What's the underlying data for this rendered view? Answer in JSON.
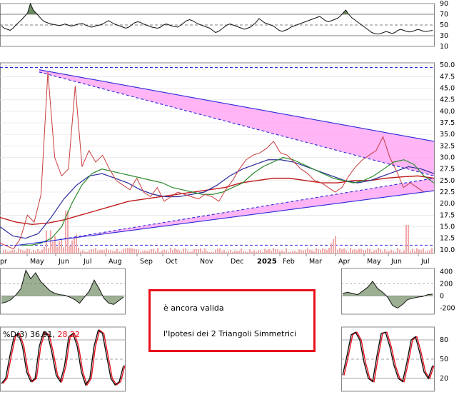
{
  "colors": {
    "rsi_line": "#111111",
    "rsi_fill": "#4a6e3a",
    "price_line": "#c83c3c",
    "sma_green": "#2e8b2e",
    "sma_blue": "#2a2a9a",
    "sma_red": "#c01c1c",
    "triangle_fill": "#ff9cf3",
    "trend_line": "#2a2ad8",
    "volume": "#f0a8a8",
    "macd_fill_pos": "#4a6e3a",
    "macd_fill_neg": "#8a4040",
    "stoch_k": "#111111",
    "stoch_d": "#e8101c",
    "note_border": "#e8101c"
  },
  "note": {
    "line1": "è ancora valida",
    "line2": "l'Ipotesi dei 2 Triangoli Simmetrici"
  },
  "stoch_label": {
    "prefix": "%D(3)",
    "value1": "36.91,",
    "value2": "28.22"
  },
  "chart_data": [
    {
      "type": "line",
      "panel": "rsi",
      "y_ticks": [
        "90",
        "70",
        "50",
        "30",
        "10"
      ],
      "ylim": [
        10,
        90
      ],
      "reference_levels": [
        30,
        50,
        70
      ],
      "grid": true
    },
    {
      "type": "line",
      "panel": "price",
      "y_ticks": [
        "50.0",
        "47.5",
        "45.0",
        "42.5",
        "40.0",
        "37.5",
        "35.0",
        "32.5",
        "30.0",
        "27.5",
        "25.0",
        "22.5",
        "20.0",
        "17.5",
        "15.0",
        "12.5",
        "10.0"
      ],
      "ylim": [
        9.2,
        50.5
      ],
      "x_labels": [
        "pr",
        "May",
        "Jun",
        "Jul",
        "Aug",
        "Sep",
        "Oct",
        "Nov",
        "Dec",
        "2025",
        "Feb",
        "Mar",
        "Apr",
        "May",
        "Jun",
        "Jul"
      ],
      "horizontal_levels": [
        49.5,
        11.0
      ],
      "series": [
        {
          "role": "price",
          "values": [
            11.5,
            10.8,
            10.2,
            12.5,
            17.5,
            16.0,
            22.0,
            48.5,
            30.0,
            26.0,
            27.5,
            45.5,
            28.0,
            31.5,
            29.0,
            30.5,
            27.5,
            25.0,
            24.0,
            23.0,
            25.5,
            22.5,
            21.5,
            23.5,
            20.5,
            21.5,
            22.5,
            22.0,
            21.5,
            21.0,
            22.0,
            21.5,
            20.5,
            23.0,
            25.0,
            27.5,
            29.5,
            30.5,
            31.0,
            32.0,
            33.5,
            31.0,
            30.5,
            29.0,
            27.5,
            26.5,
            25.0,
            24.5,
            23.5,
            22.5,
            23.5,
            26.0,
            28.0,
            29.5,
            30.5,
            31.5,
            34.5,
            30.0,
            27.0,
            23.5,
            24.5,
            23.5,
            22.5
          ]
        },
        {
          "role": "sma_short",
          "values": [
            11.0,
            11.0,
            11.5,
            12.5,
            15.0,
            20.0,
            24.0,
            26.5,
            27.5,
            27.0,
            26.5,
            26.0,
            25.5,
            25.0,
            24.5,
            23.5,
            23.0,
            22.5,
            22.0,
            22.0,
            22.5,
            23.5,
            24.5,
            26.5,
            28.0,
            29.0,
            30.0,
            29.5,
            28.5,
            27.5,
            26.5,
            25.5,
            25.0,
            24.5,
            25.0,
            26.0,
            27.5,
            29.0,
            29.5,
            28.5,
            26.0,
            24.5
          ]
        },
        {
          "role": "sma_mid",
          "values": [
            15.0,
            13.0,
            12.5,
            13.5,
            17.0,
            21.0,
            24.0,
            26.0,
            26.5,
            25.5,
            24.5,
            23.0,
            22.0,
            21.5,
            21.5,
            22.0,
            22.5,
            24.0,
            26.0,
            27.5,
            28.5,
            29.5,
            29.5,
            29.0,
            28.0,
            27.0,
            26.0,
            25.0,
            24.5,
            25.0,
            26.0,
            27.0,
            28.0,
            27.5,
            26.5
          ]
        },
        {
          "role": "sma_long",
          "values": [
            17.0,
            16.0,
            15.5,
            15.8,
            16.5,
            17.5,
            18.5,
            19.5,
            20.5,
            21.0,
            21.5,
            22.0,
            22.5,
            23.0,
            23.5,
            24.5,
            25.0,
            25.5,
            25.5,
            25.0,
            24.5,
            24.5,
            25.0,
            25.0,
            25.5,
            25.8,
            26.0,
            25.5
          ]
        }
      ],
      "trend_lines": [
        {
          "name": "upper",
          "from": [
            0.0,
            49.0
          ],
          "to": [
            1.0,
            33.5
          ]
        },
        {
          "name": "lower",
          "from": [
            0.0,
            10.8
          ],
          "to": [
            1.0,
            22.8
          ]
        },
        {
          "name": "inner_upper",
          "from": [
            0.0,
            48.5
          ],
          "to": [
            1.0,
            26.0
          ]
        },
        {
          "name": "inner_lower",
          "from": [
            0.0,
            11.5
          ],
          "to": [
            1.0,
            25.5
          ]
        }
      ]
    },
    {
      "type": "line",
      "panel": "macd",
      "y_ticks": [
        "400",
        "200",
        "0",
        "-200"
      ],
      "ylim": [
        -300,
        450
      ]
    },
    {
      "type": "line",
      "panel": "stochastic",
      "y_ticks": [
        "80",
        "50",
        "20"
      ],
      "ylim": [
        0,
        100
      ],
      "series": [
        {
          "name": "%D(3)",
          "last": 36.91
        },
        {
          "name": "",
          "last": 28.22
        }
      ]
    }
  ]
}
